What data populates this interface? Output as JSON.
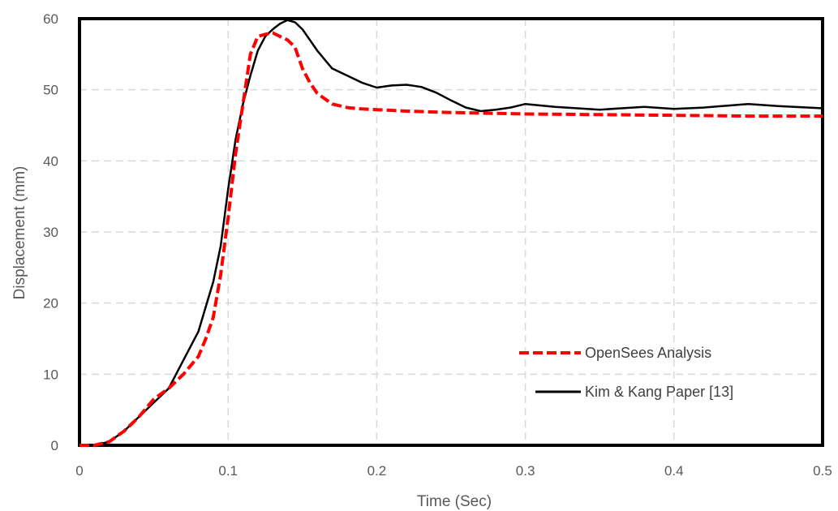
{
  "chart_data": {
    "type": "line",
    "title": "",
    "xlabel": "Time (Sec)",
    "ylabel": "Displacement (mm)",
    "xlim": [
      0,
      0.5
    ],
    "ylim": [
      0,
      60
    ],
    "x_ticks": [
      0,
      0.1,
      0.2,
      0.3,
      0.4,
      0.5
    ],
    "y_ticks": [
      0,
      10,
      20,
      30,
      40,
      50,
      60
    ],
    "x_tick_labels": [
      "0",
      "0.1",
      "0.2",
      "0.3",
      "0.4",
      "0.5"
    ],
    "y_tick_labels": [
      "0",
      "10",
      "20",
      "30",
      "40",
      "50",
      "60"
    ],
    "grid": true,
    "legend_position": "bottom-right",
    "series": [
      {
        "name": "OpenSees Analysis",
        "color": "#ff0000",
        "style": "dashed",
        "x": [
          0,
          0.01,
          0.02,
          0.03,
          0.04,
          0.05,
          0.06,
          0.07,
          0.08,
          0.085,
          0.09,
          0.095,
          0.1,
          0.105,
          0.11,
          0.115,
          0.12,
          0.125,
          0.13,
          0.135,
          0.14,
          0.145,
          0.15,
          0.155,
          0.16,
          0.17,
          0.18,
          0.19,
          0.2,
          0.22,
          0.25,
          0.3,
          0.35,
          0.4,
          0.45,
          0.5
        ],
        "y": [
          0,
          0,
          0.5,
          2,
          4,
          6.5,
          8,
          10,
          12.5,
          15,
          18,
          24,
          32,
          41,
          48,
          55,
          57.5,
          57.8,
          58,
          57.5,
          57,
          56,
          53,
          51,
          49.5,
          48,
          47.5,
          47.3,
          47.2,
          47,
          46.8,
          46.6,
          46.5,
          46.4,
          46.3,
          46.3
        ]
      },
      {
        "name": "Kim & Kang Paper [13]",
        "color": "#000000",
        "style": "solid",
        "x": [
          0,
          0.01,
          0.02,
          0.03,
          0.04,
          0.05,
          0.06,
          0.07,
          0.08,
          0.085,
          0.09,
          0.095,
          0.1,
          0.105,
          0.11,
          0.115,
          0.12,
          0.125,
          0.13,
          0.135,
          0.14,
          0.145,
          0.15,
          0.155,
          0.16,
          0.17,
          0.18,
          0.19,
          0.2,
          0.21,
          0.22,
          0.23,
          0.24,
          0.25,
          0.26,
          0.27,
          0.28,
          0.29,
          0.3,
          0.31,
          0.32,
          0.35,
          0.38,
          0.4,
          0.42,
          0.45,
          0.47,
          0.5
        ],
        "y": [
          0,
          0,
          0.5,
          2,
          4,
          6,
          8,
          12,
          16,
          19.5,
          23,
          28,
          36,
          43,
          48,
          52,
          55.5,
          57.5,
          58.5,
          59.3,
          59.8,
          59.5,
          58.5,
          57,
          55.5,
          53,
          52,
          51,
          50.3,
          50.6,
          50.7,
          50.4,
          49.6,
          48.5,
          47.5,
          47,
          47.2,
          47.5,
          48,
          47.8,
          47.6,
          47.2,
          47.6,
          47.3,
          47.5,
          48,
          47.7,
          47.4
        ]
      }
    ]
  }
}
